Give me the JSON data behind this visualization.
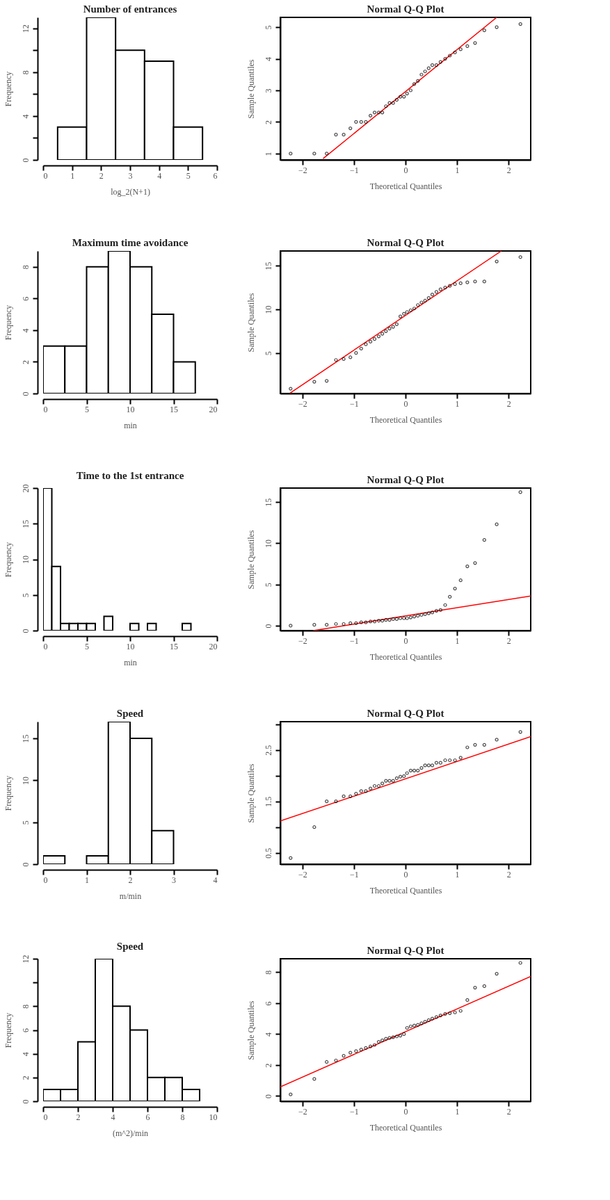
{
  "chart_data": [
    {
      "type": "histogram",
      "title": "Number of entrances",
      "xlabel": "log_2(N+1)",
      "ylabel": "Frequency",
      "color": "#ffffff",
      "bins": [
        0.5,
        1.5,
        2.5,
        3.5,
        4.5,
        5.5
      ],
      "values": [
        3,
        13,
        10,
        9,
        3
      ],
      "xlim": [
        0,
        6
      ],
      "xticks": [
        0,
        1,
        2,
        3,
        4,
        5,
        6
      ],
      "ylim": [
        0,
        13
      ],
      "yticks": [
        0,
        {
          "value": 2,
          "label": null
        },
        4,
        {
          "value": 6,
          "label": null
        },
        8,
        {
          "value": 10,
          "label": null
        },
        12
      ],
      "grid": false
    },
    {
      "type": "scatter",
      "title": "Normal Q-Q Plot",
      "xlabel": "Theoretical Quantiles",
      "ylabel": "Sample Quantiles",
      "marker": "circle",
      "xlim": [
        -2.43,
        2.43
      ],
      "xticks": [
        -2,
        -1,
        0,
        1,
        2
      ],
      "ylim": [
        0.8,
        5.31
      ],
      "yticks": [
        1,
        2,
        3,
        4,
        5
      ],
      "grid": false,
      "series": [
        {
          "type": "scatter",
          "color": "#000000",
          "x": [
            -2.23,
            -1.77,
            -1.53,
            -1.35,
            -1.2,
            -1.07,
            -0.96,
            -0.86,
            -0.77,
            -0.68,
            -0.6,
            -0.52,
            -0.45,
            -0.38,
            -0.31,
            -0.24,
            -0.17,
            -0.1,
            -0.03,
            0.03,
            0.1,
            0.17,
            0.24,
            0.31,
            0.38,
            0.45,
            0.52,
            0.6,
            0.68,
            0.77,
            0.86,
            0.96,
            1.07,
            1.2,
            1.35,
            1.53,
            1.77,
            2.23
          ],
          "values": [
            1,
            1,
            1,
            1.6,
            1.6,
            1.8,
            2,
            2,
            2,
            2.2,
            2.3,
            2.3,
            2.3,
            2.5,
            2.6,
            2.6,
            2.7,
            2.8,
            2.8,
            2.9,
            3,
            3.2,
            3.3,
            3.5,
            3.6,
            3.7,
            3.8,
            3.8,
            3.9,
            4,
            4.1,
            4.2,
            4.3,
            4.4,
            4.5,
            4.9,
            5,
            5.1
          ]
        },
        {
          "type": "line",
          "color": "#ff0000",
          "marker": "none",
          "x": [
            -1.6,
            1.77
          ],
          "values": [
            0.84,
            5.31
          ]
        }
      ]
    },
    {
      "type": "histogram",
      "title": "Maximum time avoidance",
      "xlabel": "min",
      "ylabel": "Frequency",
      "color": "#ffffff",
      "bins": [
        0,
        2.5,
        5,
        7.5,
        10,
        12.5,
        15,
        17.5
      ],
      "values": [
        3,
        3,
        8,
        9,
        8,
        5,
        2
      ],
      "xlim": [
        0,
        20
      ],
      "xticks": [
        0,
        5,
        10,
        15,
        20
      ],
      "ylim": [
        0,
        9
      ],
      "yticks": [
        0,
        2,
        4,
        6,
        8
      ],
      "grid": false
    },
    {
      "type": "scatter",
      "title": "Normal Q-Q Plot",
      "xlabel": "Theoretical Quantiles",
      "ylabel": "Sample Quantiles",
      "marker": "circle",
      "xlim": [
        -2.43,
        2.43
      ],
      "xticks": [
        -2,
        -1,
        0,
        1,
        2
      ],
      "ylim": [
        0.35,
        16.7
      ],
      "yticks": [
        5,
        10,
        15
      ],
      "grid": false,
      "series": [
        {
          "type": "scatter",
          "color": "#000000",
          "x": [
            -2.23,
            -1.77,
            -1.53,
            -1.35,
            -1.2,
            -1.07,
            -0.96,
            -0.86,
            -0.77,
            -0.68,
            -0.6,
            -0.52,
            -0.45,
            -0.38,
            -0.31,
            -0.24,
            -0.17,
            -0.1,
            -0.03,
            0.03,
            0.1,
            0.17,
            0.24,
            0.31,
            0.38,
            0.45,
            0.52,
            0.6,
            0.68,
            0.77,
            0.86,
            0.96,
            1.07,
            1.2,
            1.35,
            1.53,
            1.77,
            2.23
          ],
          "values": [
            0.9,
            1.7,
            1.8,
            4.2,
            4.3,
            4.5,
            5,
            5.5,
            6,
            6.3,
            6.6,
            6.9,
            7.2,
            7.5,
            7.8,
            8,
            8.3,
            9.2,
            9.5,
            9.7,
            9.9,
            10.1,
            10.5,
            10.8,
            11,
            11.3,
            11.7,
            12,
            12.3,
            12.5,
            12.7,
            12.9,
            13,
            13.1,
            13.2,
            13.2,
            15.5,
            16
          ]
        },
        {
          "type": "line",
          "color": "#ff0000",
          "marker": "none",
          "x": [
            -2.24,
            1.86
          ],
          "values": [
            0.4,
            16.7
          ]
        }
      ]
    },
    {
      "type": "histogram",
      "title": "Time to the 1st entrance",
      "xlabel": "min",
      "ylabel": "Frequency",
      "color": "#ffffff",
      "bins": [
        0,
        1,
        2,
        3,
        4,
        5,
        6,
        7,
        8,
        9,
        10,
        11,
        12,
        13,
        14,
        15,
        16,
        17
      ],
      "values": [
        20,
        9,
        1,
        1,
        1,
        1,
        0,
        2,
        0,
        0,
        1,
        0,
        1,
        0,
        0,
        0,
        1
      ],
      "xlim": [
        0,
        20
      ],
      "xticks": [
        0,
        5,
        10,
        15,
        20
      ],
      "ylim": [
        0,
        20
      ],
      "yticks": [
        0,
        5,
        10,
        15,
        20
      ],
      "grid": false
    },
    {
      "type": "scatter",
      "title": "Normal Q-Q Plot",
      "xlabel": "Theoretical Quantiles",
      "ylabel": "Sample Quantiles",
      "marker": "circle",
      "xlim": [
        -2.43,
        2.43
      ],
      "xticks": [
        -2,
        -1,
        0,
        1,
        2
      ],
      "ylim": [
        -0.6,
        16.7
      ],
      "yticks": [
        0,
        5,
        10,
        15
      ],
      "grid": false,
      "series": [
        {
          "type": "scatter",
          "color": "#000000",
          "x": [
            -2.23,
            -1.77,
            -1.53,
            -1.35,
            -1.2,
            -1.07,
            -0.96,
            -0.86,
            -0.77,
            -0.68,
            -0.6,
            -0.52,
            -0.45,
            -0.38,
            -0.31,
            -0.24,
            -0.17,
            -0.1,
            -0.03,
            0.03,
            0.1,
            0.17,
            0.24,
            0.31,
            0.38,
            0.45,
            0.52,
            0.6,
            0.68,
            0.77,
            0.86,
            0.96,
            1.07,
            1.2,
            1.35,
            1.53,
            1.77,
            2.23
          ],
          "values": [
            0,
            0.1,
            0.1,
            0.2,
            0.2,
            0.3,
            0.3,
            0.4,
            0.4,
            0.5,
            0.5,
            0.6,
            0.6,
            0.7,
            0.7,
            0.8,
            0.8,
            0.9,
            0.9,
            0.9,
            1,
            1.1,
            1.2,
            1.3,
            1.4,
            1.5,
            1.6,
            1.8,
            1.9,
            2.5,
            3.5,
            4.5,
            5.5,
            7.2,
            7.6,
            10.4,
            12.3,
            16.2
          ]
        },
        {
          "type": "line",
          "color": "#ff0000",
          "marker": "none",
          "x": [
            -1.79,
            2.43
          ],
          "values": [
            -0.6,
            3.6
          ]
        }
      ]
    },
    {
      "type": "histogram",
      "title": "Speed",
      "xlabel": "m/min",
      "ylabel": "Frequency",
      "color": "#ffffff",
      "bins": [
        0,
        0.5,
        1,
        1.5,
        2,
        2.5,
        3
      ],
      "values": [
        1,
        0,
        1,
        17,
        15,
        4
      ],
      "xlim": [
        0,
        4
      ],
      "xticks": [
        0,
        1,
        2,
        3,
        4
      ],
      "ylim": [
        0,
        17
      ],
      "yticks": [
        0,
        5,
        10,
        15
      ],
      "grid": false
    },
    {
      "type": "scatter",
      "title": "Normal Q-Q Plot",
      "xlabel": "Theoretical Quantiles",
      "ylabel": "Sample Quantiles",
      "marker": "circle",
      "xlim": [
        -2.43,
        2.43
      ],
      "xticks": [
        -2,
        -1,
        0,
        1,
        2
      ],
      "ylim": [
        0.28,
        3.05
      ],
      "yticks": [
        0.5,
        {
          "value": 1,
          "label": null
        },
        1.5,
        {
          "value": 2,
          "label": null
        },
        2.5,
        {
          "value": 3,
          "label": null
        }
      ],
      "grid": false,
      "series": [
        {
          "type": "scatter",
          "color": "#000000",
          "x": [
            -2.23,
            -1.77,
            -1.53,
            -1.35,
            -1.2,
            -1.07,
            -0.96,
            -0.86,
            -0.77,
            -0.68,
            -0.6,
            -0.52,
            -0.45,
            -0.38,
            -0.31,
            -0.24,
            -0.17,
            -0.1,
            -0.03,
            0.03,
            0.1,
            0.17,
            0.24,
            0.31,
            0.38,
            0.45,
            0.52,
            0.6,
            0.68,
            0.77,
            0.86,
            0.96,
            1.07,
            1.2,
            1.35,
            1.53,
            1.77,
            2.23
          ],
          "values": [
            0.4,
            1,
            1.5,
            1.5,
            1.6,
            1.6,
            1.65,
            1.7,
            1.7,
            1.75,
            1.8,
            1.8,
            1.85,
            1.9,
            1.9,
            1.9,
            1.95,
            1.98,
            1.99,
            2.05,
            2.1,
            2.1,
            2.1,
            2.15,
            2.2,
            2.2,
            2.2,
            2.25,
            2.25,
            2.3,
            2.3,
            2.3,
            2.35,
            2.55,
            2.6,
            2.6,
            2.7,
            2.85
          ]
        },
        {
          "type": "line",
          "color": "#ff0000",
          "marker": "none",
          "x": [
            -2.43,
            2.43
          ],
          "values": [
            1.12,
            2.76
          ]
        }
      ]
    },
    {
      "type": "histogram",
      "title": "Speed",
      "xlabel": "(m^2)/min",
      "ylabel": "Frequency",
      "color": "#ffffff",
      "bins": [
        0,
        1,
        2,
        3,
        4,
        5,
        6,
        7,
        8,
        9
      ],
      "values": [
        1,
        1,
        5,
        12,
        8,
        6,
        2,
        2,
        1
      ],
      "xlim": [
        0,
        10
      ],
      "xticks": [
        0,
        2,
        4,
        6,
        8,
        10
      ],
      "ylim": [
        0,
        12
      ],
      "yticks": [
        0,
        2,
        4,
        6,
        8,
        {
          "value": 10,
          "label": null
        },
        12
      ],
      "grid": false
    },
    {
      "type": "scatter",
      "title": "Normal Q-Q Plot",
      "xlabel": "Theoretical Quantiles",
      "ylabel": "Sample Quantiles",
      "marker": "circle",
      "xlim": [
        -2.43,
        2.43
      ],
      "xticks": [
        -2,
        -1,
        0,
        1,
        2
      ],
      "ylim": [
        -0.34,
        8.87
      ],
      "yticks": [
        0,
        2,
        4,
        6,
        8
      ],
      "grid": false,
      "series": [
        {
          "type": "scatter",
          "color": "#000000",
          "x": [
            -2.23,
            -1.77,
            -1.53,
            -1.35,
            -1.2,
            -1.07,
            -0.96,
            -0.86,
            -0.77,
            -0.68,
            -0.6,
            -0.52,
            -0.45,
            -0.38,
            -0.31,
            -0.24,
            -0.17,
            -0.1,
            -0.03,
            0.03,
            0.1,
            0.17,
            0.24,
            0.31,
            0.38,
            0.45,
            0.52,
            0.6,
            0.68,
            0.77,
            0.86,
            0.96,
            1.07,
            1.2,
            1.35,
            1.53,
            1.77,
            2.23
          ],
          "values": [
            0.1,
            1.1,
            2.2,
            2.3,
            2.6,
            2.8,
            2.9,
            3,
            3.1,
            3.2,
            3.3,
            3.5,
            3.6,
            3.7,
            3.75,
            3.8,
            3.85,
            3.9,
            4,
            4.4,
            4.5,
            4.55,
            4.6,
            4.7,
            4.8,
            4.9,
            5,
            5.1,
            5.2,
            5.3,
            5.35,
            5.4,
            5.5,
            6.2,
            7,
            7.1,
            7.9,
            8.6
          ]
        },
        {
          "type": "line",
          "color": "#ff0000",
          "marker": "none",
          "x": [
            -2.43,
            2.43
          ],
          "values": [
            0.59,
            7.73
          ]
        }
      ]
    }
  ]
}
